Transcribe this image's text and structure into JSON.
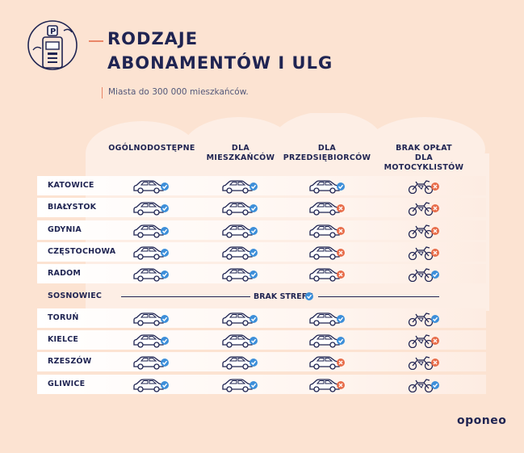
{
  "title": {
    "line1": "RODZAJE",
    "line2": "ABONAMENTÓW I ULG"
  },
  "subtitle": "Miasta do 300 000 mieszkańców.",
  "columns": [
    {
      "line1": "",
      "line2": "OGÓLNODOSTĘPNE"
    },
    {
      "line1": "DLA",
      "line2": "MIESZKAŃCÓW"
    },
    {
      "line1": "DLA",
      "line2": "PRZEDSIĘBIORCÓW"
    },
    {
      "line1": "BRAK OPŁAT",
      "line2": "DLA MOTOCYKLISTÓW"
    }
  ],
  "rows": [
    {
      "city": "KATOWICE",
      "values": [
        true,
        true,
        true,
        false
      ]
    },
    {
      "city": "BIAŁYSTOK",
      "values": [
        true,
        true,
        false,
        false
      ]
    },
    {
      "city": "GDYNIA",
      "values": [
        true,
        true,
        false,
        false
      ]
    },
    {
      "city": "CZĘSTOCHOWA",
      "values": [
        true,
        true,
        false,
        false
      ]
    },
    {
      "city": "RADOM",
      "values": [
        true,
        true,
        false,
        true
      ]
    },
    {
      "city": "SOSNOWIEC",
      "no_zone": true,
      "note": "BRAK STREFY"
    },
    {
      "city": "TORUŃ",
      "values": [
        true,
        true,
        true,
        true
      ]
    },
    {
      "city": "KIELCE",
      "values": [
        true,
        true,
        true,
        false
      ]
    },
    {
      "city": "RZESZÓW",
      "values": [
        true,
        true,
        false,
        false
      ]
    },
    {
      "city": "GLIWICE",
      "values": [
        true,
        true,
        false,
        true
      ]
    }
  ],
  "brand": "oponeo",
  "colors": {
    "background": "#fce3d2",
    "navy": "#1f2452",
    "check": "#3d8fd9",
    "cross": "#e86d4a",
    "accent": "#e98668"
  }
}
